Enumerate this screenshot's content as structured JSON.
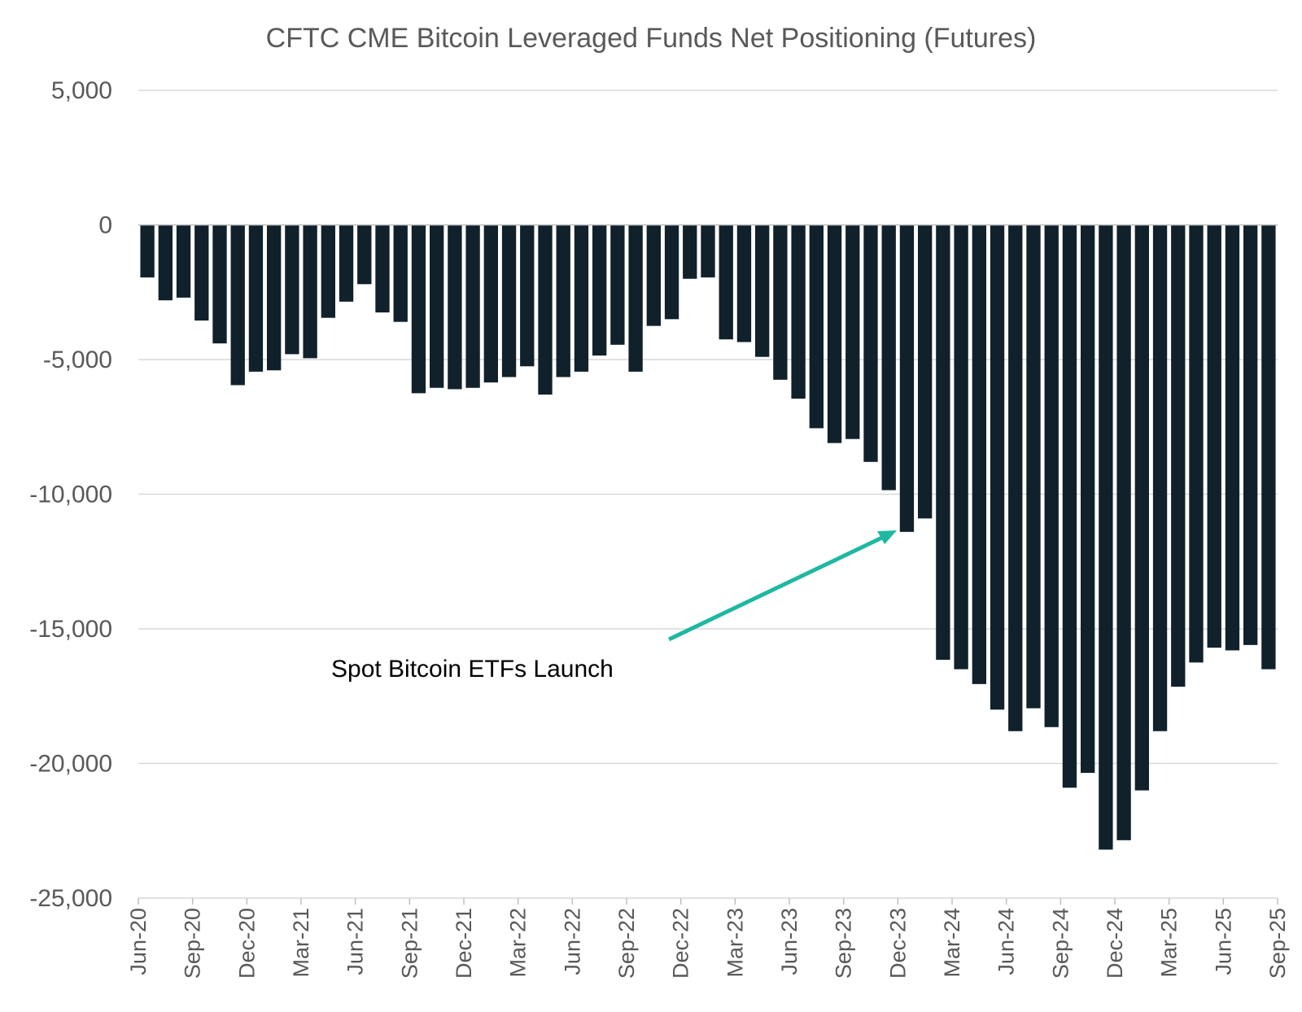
{
  "chart_data": {
    "type": "bar",
    "title": "CFTC CME Bitcoin Leveraged Funds Net Positioning (Futures)",
    "xlabel": "",
    "ylabel": "",
    "ylim": [
      -25000,
      5000
    ],
    "yticks": [
      5000,
      0,
      -5000,
      -10000,
      -15000,
      -20000,
      -25000
    ],
    "ytick_labels": [
      "5,000",
      "0",
      "-5,000",
      "-10,000",
      "-15,000",
      "-20,000",
      "-25,000"
    ],
    "xtick_labels": [
      "Jun-20",
      "Sep-20",
      "Dec-20",
      "Mar-21",
      "Jun-21",
      "Sep-21",
      "Dec-21",
      "Mar-22",
      "Jun-22",
      "Sep-22",
      "Dec-22",
      "Mar-23",
      "Jun-23",
      "Sep-23",
      "Dec-23",
      "Mar-24",
      "Jun-24",
      "Sep-24",
      "Dec-24",
      "Mar-25",
      "Jun-25",
      "Sep-25"
    ],
    "grid": true,
    "categories": [
      "Jul-20",
      "Aug-20",
      "Sep-20",
      "Oct-20",
      "Nov-20",
      "Dec-20",
      "Jan-21",
      "Feb-21",
      "Mar-21",
      "Apr-21",
      "May-21",
      "Jun-21",
      "Jul-21",
      "Aug-21",
      "Sep-21",
      "Oct-21",
      "Nov-21",
      "Dec-21",
      "Jan-22",
      "Feb-22",
      "Mar-22",
      "Apr-22",
      "May-22",
      "Jun-22",
      "Jul-22",
      "Aug-22",
      "Sep-22",
      "Oct-22",
      "Nov-22",
      "Dec-22",
      "Jan-23",
      "Feb-23",
      "Mar-23",
      "Apr-23",
      "May-23",
      "Jun-23",
      "Jul-23",
      "Aug-23",
      "Sep-23",
      "Oct-23",
      "Nov-23",
      "Dec-23",
      "Jan-24",
      "Feb-24",
      "Mar-24",
      "Apr-24",
      "May-24",
      "Jun-24",
      "Jul-24",
      "Aug-24",
      "Sep-24",
      "Oct-24",
      "Nov-24",
      "Dec-24",
      "Jan-25",
      "Feb-25",
      "Mar-25",
      "Apr-25",
      "May-25",
      "Jun-25",
      "Jul-25",
      "Aug-25",
      "Sep-25"
    ],
    "series": [
      {
        "name": "Leveraged Funds Net Positioning",
        "color": "#10212b",
        "values": [
          -1950,
          -2800,
          -2700,
          -3550,
          -4400,
          -5950,
          -5450,
          -5400,
          -4800,
          -4950,
          -3450,
          -2850,
          -2200,
          -3250,
          -3600,
          -6250,
          -6050,
          -6100,
          -6050,
          -5850,
          -5650,
          -5250,
          -6300,
          -5650,
          -5450,
          -4850,
          -4450,
          -5450,
          -3750,
          -3500,
          -2000,
          -1950,
          -4250,
          -4350,
          -4900,
          -5750,
          -6450,
          -7550,
          -8100,
          -7950,
          -8800,
          -9850,
          -11400,
          -10900,
          -16150,
          -16500,
          -17050,
          -18000,
          -18800,
          -17950,
          -18650,
          -20900,
          -20350,
          -23200,
          -22850,
          -21000,
          -18800,
          -17150,
          -16250,
          -15700,
          -15800,
          -15600,
          -16500
        ]
      }
    ],
    "annotation": {
      "text": "Spot Bitcoin ETFs Launch",
      "target_category": "Dec-23",
      "arrow_color": "#1fb8a0"
    }
  }
}
